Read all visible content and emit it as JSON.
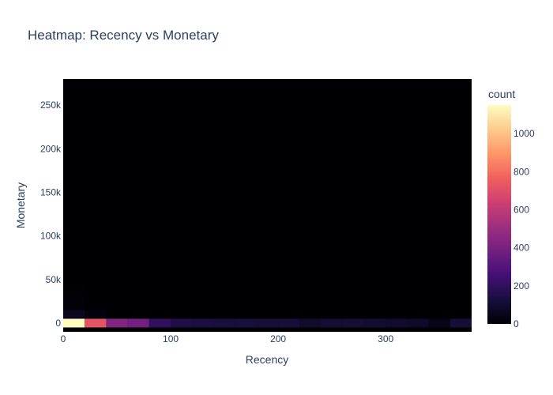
{
  "chart_data": {
    "type": "heatmap",
    "title": "Heatmap: Recency vs Monetary",
    "xlabel": "Recency",
    "ylabel": "Monetary",
    "x_bin_size": 20,
    "y_bin_size": 10000,
    "xlim": [
      0,
      380
    ],
    "ylim": [
      -10000,
      280000
    ],
    "x_ticks": [
      {
        "value": 0,
        "label": "0"
      },
      {
        "value": 100,
        "label": "100"
      },
      {
        "value": 200,
        "label": "200"
      },
      {
        "value": 300,
        "label": "300"
      }
    ],
    "y_ticks": [
      {
        "value": 0,
        "label": "0"
      },
      {
        "value": 50000,
        "label": "50k"
      },
      {
        "value": 100000,
        "label": "100k"
      },
      {
        "value": 150000,
        "label": "150k"
      },
      {
        "value": 200000,
        "label": "200k"
      },
      {
        "value": 250000,
        "label": "250k"
      }
    ],
    "colorbar": {
      "title": "count",
      "range": [
        0,
        1150
      ],
      "ticks": [
        {
          "value": 0,
          "label": "0"
        },
        {
          "value": 200,
          "label": "200"
        },
        {
          "value": 400,
          "label": "400"
        },
        {
          "value": 600,
          "label": "600"
        },
        {
          "value": 800,
          "label": "800"
        },
        {
          "value": 1000,
          "label": "1000"
        }
      ],
      "colorscale": [
        "#000004",
        "#180f3d",
        "#440f76",
        "#721f81",
        "#9e2f7f",
        "#cd4071",
        "#f1605d",
        "#fd9668",
        "#feca8d",
        "#fcfdbf"
      ]
    },
    "cells": [
      {
        "x": 0,
        "y": 0,
        "count": 1150
      },
      {
        "x": 20,
        "y": 0,
        "count": 720
      },
      {
        "x": 40,
        "y": 0,
        "count": 430
      },
      {
        "x": 60,
        "y": 0,
        "count": 380
      },
      {
        "x": 80,
        "y": 0,
        "count": 200
      },
      {
        "x": 100,
        "y": 0,
        "count": 150
      },
      {
        "x": 120,
        "y": 0,
        "count": 135
      },
      {
        "x": 140,
        "y": 0,
        "count": 130
      },
      {
        "x": 160,
        "y": 0,
        "count": 125
      },
      {
        "x": 180,
        "y": 0,
        "count": 120
      },
      {
        "x": 200,
        "y": 0,
        "count": 120
      },
      {
        "x": 220,
        "y": 0,
        "count": 90
      },
      {
        "x": 240,
        "y": 0,
        "count": 110
      },
      {
        "x": 260,
        "y": 0,
        "count": 115
      },
      {
        "x": 280,
        "y": 0,
        "count": 100
      },
      {
        "x": 300,
        "y": 0,
        "count": 95
      },
      {
        "x": 320,
        "y": 0,
        "count": 85
      },
      {
        "x": 340,
        "y": 0,
        "count": 40
      },
      {
        "x": 360,
        "y": 0,
        "count": 115
      },
      {
        "x": 0,
        "y": 10000,
        "count": 60
      },
      {
        "x": 20,
        "y": 10000,
        "count": 20
      },
      {
        "x": 0,
        "y": 20000,
        "count": 12
      },
      {
        "x": 0,
        "y": 30000,
        "count": 6
      },
      {
        "x": 0,
        "y": 40000,
        "count": 3
      }
    ]
  }
}
